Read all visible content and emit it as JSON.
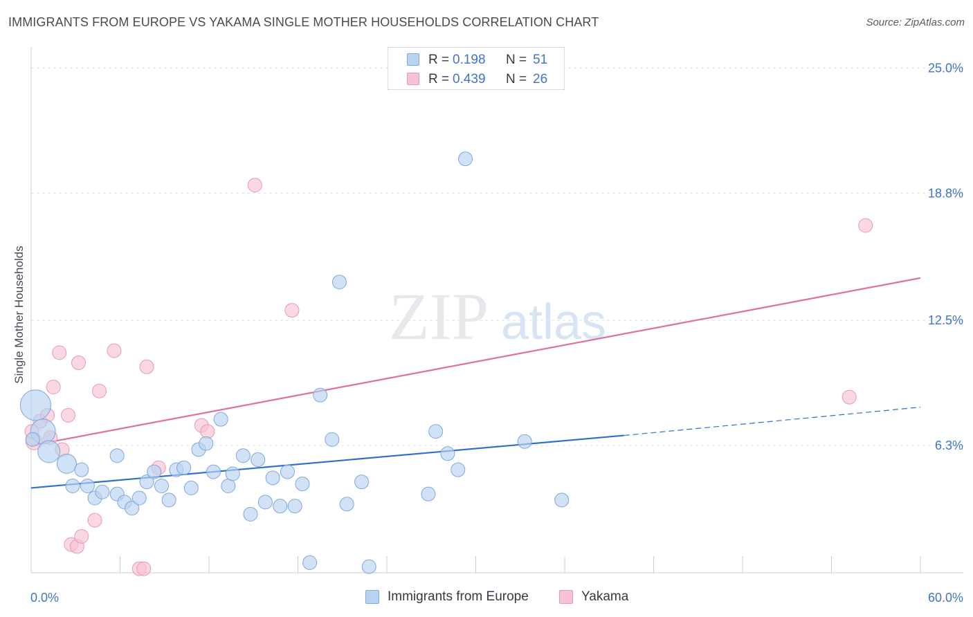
{
  "header": {
    "title": "IMMIGRANTS FROM EUROPE VS YAKAMA SINGLE MOTHER HOUSEHOLDS CORRELATION CHART",
    "source": "Source: ZipAtlas.com"
  },
  "watermark": {
    "part1": "ZIP",
    "part2": "atlas"
  },
  "legend_top": {
    "rows": [
      {
        "r_label": "R =",
        "r_value": "0.198",
        "n_label": "N =",
        "n_value": "51"
      },
      {
        "r_label": "R =",
        "r_value": "0.439",
        "n_label": "N =",
        "n_value": "26"
      }
    ]
  },
  "colors": {
    "blue_fill": "#b8d2f2",
    "blue_stroke": "#7ea7dc",
    "blue_line": "#2f6fcc",
    "pink_fill": "#f7c3d2",
    "pink_stroke": "#e998b2",
    "pink_line": "#e0709a",
    "tick_label": "#3d74c8",
    "grid": "#dcdfe4"
  },
  "chart_data": {
    "type": "scatter",
    "title": "IMMIGRANTS FROM EUROPE VS YAKAMA SINGLE MOTHER HOUSEHOLDS CORRELATION CHART",
    "xlabel": "",
    "ylabel": "Single Mother Households",
    "xlim": [
      0,
      60
    ],
    "ylim": [
      0,
      25.8
    ],
    "x_tick_labels": [
      "0.0%",
      "60.0%"
    ],
    "y_ticks": [
      6.3,
      12.5,
      18.8,
      25.0
    ],
    "y_tick_labels": [
      "6.3%",
      "12.5%",
      "18.8%",
      "25.0%"
    ],
    "grid": true,
    "legend_position": "top-center",
    "series": [
      {
        "name": "Immigrants from Europe",
        "color": "#b8d2f2",
        "r": 0.198,
        "n": 51,
        "trend": {
          "x0": 0,
          "y0": 4.2,
          "x1": 40,
          "y1": 6.8,
          "dash_to_x": 60,
          "dash_to_y": 8.2
        },
        "points": [
          [
            0.3,
            8.3,
            22
          ],
          [
            0.8,
            7.0,
            18
          ],
          [
            1.2,
            6.0,
            16
          ],
          [
            2.4,
            5.4,
            14
          ],
          [
            3.4,
            5.1,
            10
          ],
          [
            2.8,
            4.3,
            10
          ],
          [
            3.8,
            4.3,
            10
          ],
          [
            4.3,
            3.7,
            10
          ],
          [
            4.8,
            4.0,
            10
          ],
          [
            5.8,
            5.8,
            10
          ],
          [
            5.8,
            3.9,
            10
          ],
          [
            6.3,
            3.5,
            10
          ],
          [
            6.8,
            3.2,
            10
          ],
          [
            7.3,
            3.7,
            10
          ],
          [
            7.8,
            4.5,
            10
          ],
          [
            8.3,
            5.0,
            10
          ],
          [
            8.8,
            4.3,
            10
          ],
          [
            9.3,
            3.6,
            10
          ],
          [
            9.8,
            5.1,
            10
          ],
          [
            10.3,
            5.2,
            10
          ],
          [
            10.8,
            4.2,
            10
          ],
          [
            11.3,
            6.1,
            10
          ],
          [
            11.8,
            6.4,
            10
          ],
          [
            12.3,
            5.0,
            10
          ],
          [
            12.8,
            7.6,
            10
          ],
          [
            13.3,
            4.3,
            10
          ],
          [
            13.6,
            4.9,
            10
          ],
          [
            14.3,
            5.8,
            10
          ],
          [
            14.8,
            2.9,
            10
          ],
          [
            15.3,
            5.6,
            10
          ],
          [
            15.8,
            3.5,
            10
          ],
          [
            16.3,
            4.7,
            10
          ],
          [
            16.8,
            3.3,
            10
          ],
          [
            17.3,
            5.0,
            10
          ],
          [
            17.8,
            3.3,
            10
          ],
          [
            18.3,
            4.4,
            10
          ],
          [
            18.8,
            0.5,
            10
          ],
          [
            19.5,
            8.8,
            10
          ],
          [
            20.3,
            6.6,
            10
          ],
          [
            20.8,
            14.4,
            10
          ],
          [
            21.3,
            3.4,
            10
          ],
          [
            22.3,
            4.5,
            10
          ],
          [
            22.8,
            0.3,
            10
          ],
          [
            26.8,
            3.9,
            10
          ],
          [
            27.3,
            7.0,
            10
          ],
          [
            28.1,
            5.9,
            10
          ],
          [
            28.8,
            5.1,
            10
          ],
          [
            29.3,
            20.5,
            10
          ],
          [
            33.3,
            6.5,
            10
          ],
          [
            35.8,
            3.6,
            10
          ],
          [
            0.1,
            6.6,
            10
          ]
        ]
      },
      {
        "name": "Yakama",
        "color": "#f7c3d2",
        "r": 0.439,
        "n": 26,
        "trend": {
          "x0": 0,
          "y0": 6.3,
          "x1": 60,
          "y1": 14.6
        },
        "points": [
          [
            0.2,
            6.5,
            12
          ],
          [
            0.6,
            7.5,
            10
          ],
          [
            1.1,
            7.8,
            10
          ],
          [
            1.3,
            6.7,
            10
          ],
          [
            1.5,
            9.2,
            10
          ],
          [
            1.9,
            10.9,
            10
          ],
          [
            2.1,
            6.1,
            10
          ],
          [
            2.5,
            7.8,
            10
          ],
          [
            3.2,
            10.4,
            10
          ],
          [
            2.7,
            1.4,
            10
          ],
          [
            3.1,
            1.3,
            10
          ],
          [
            3.4,
            1.8,
            10
          ],
          [
            4.3,
            2.6,
            10
          ],
          [
            4.6,
            9.0,
            10
          ],
          [
            5.6,
            11.0,
            10
          ],
          [
            7.3,
            0.2,
            10
          ],
          [
            7.6,
            0.2,
            10
          ],
          [
            7.8,
            10.2,
            10
          ],
          [
            8.6,
            5.2,
            10
          ],
          [
            11.5,
            7.3,
            10
          ],
          [
            11.9,
            7.0,
            10
          ],
          [
            15.1,
            19.2,
            10
          ],
          [
            17.6,
            13.0,
            10
          ],
          [
            55.2,
            8.7,
            10
          ],
          [
            56.3,
            17.2,
            10
          ],
          [
            0.05,
            7.0,
            10
          ]
        ]
      }
    ]
  }
}
